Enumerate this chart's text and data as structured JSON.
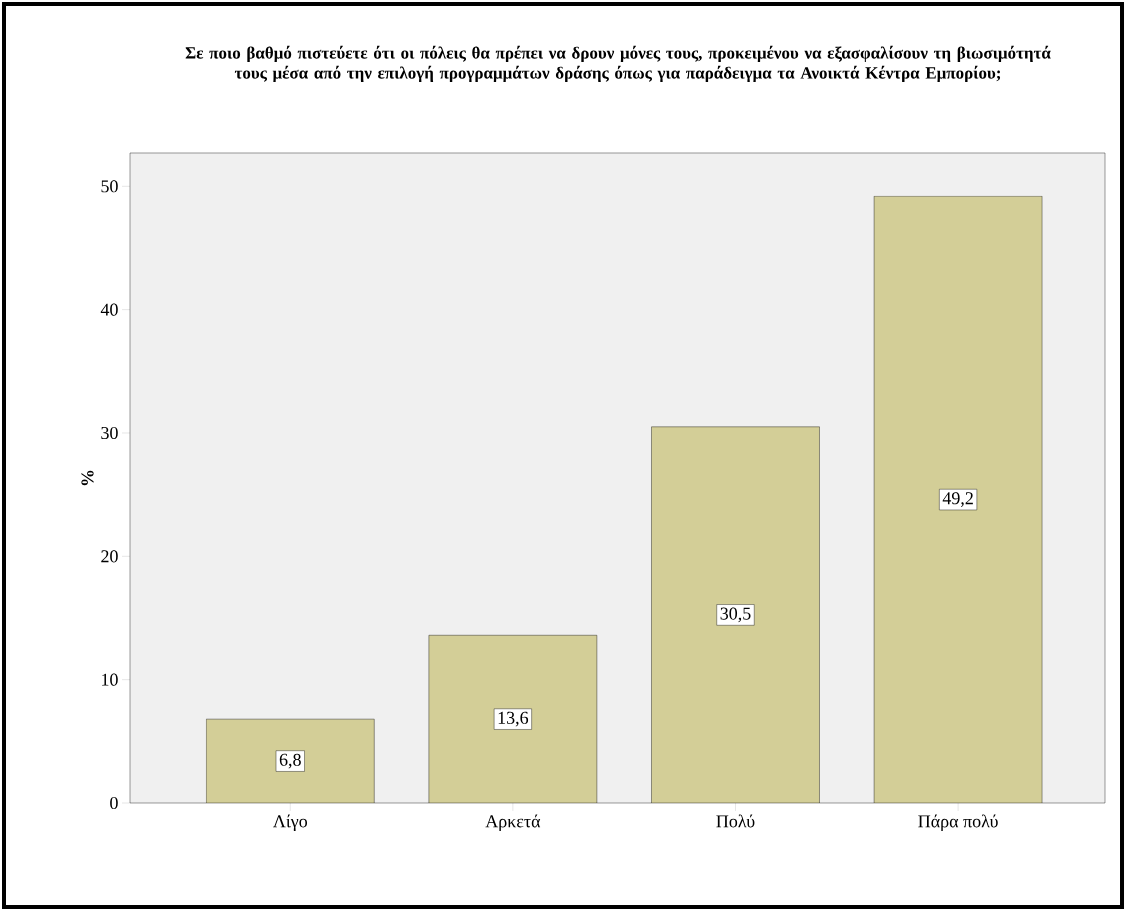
{
  "chart_data": {
    "type": "bar",
    "title": "Σε ποιο βαθμό πιστεύετε ότι οι πόλεις θα πρέπει να δρουν μόνες τους, προκειμένου να εξασφαλίσουν τη βιωσιμότητά τους μέσα από την επιλογή προγραμμάτων δράσης όπως για παράδειγμα τα Ανοικτά Κέντρα Εμπορίου;",
    "ylabel": "%",
    "categories": [
      "Λίγο",
      "Αρκετά",
      "Πολύ",
      "Πάρα πολύ"
    ],
    "values": [
      6.8,
      13.6,
      30.5,
      49.2
    ],
    "value_labels": [
      "6,8",
      "13,6",
      "30,5",
      "49,2"
    ],
    "color": "#d3ce97",
    "ylim": [
      0,
      52.7
    ],
    "yticks": [
      0,
      10,
      20,
      30,
      40,
      50
    ],
    "grid": false
  }
}
